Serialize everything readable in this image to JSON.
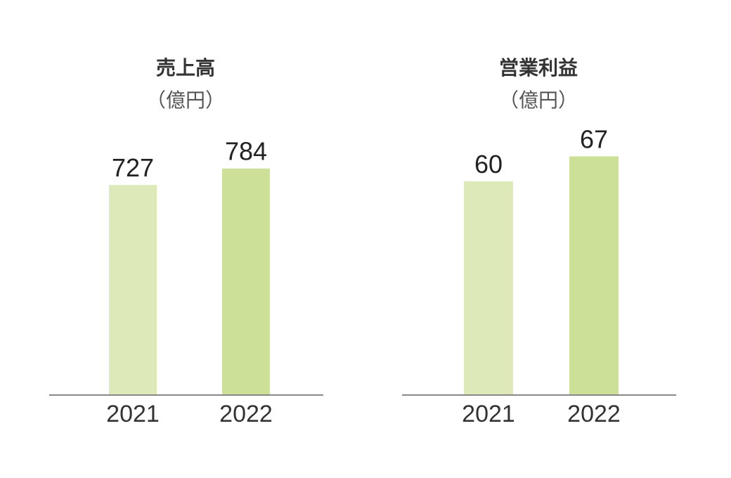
{
  "chart_data": [
    {
      "type": "bar",
      "title": "売上高",
      "unit": "（億円）",
      "categories": [
        "2021",
        "2022"
      ],
      "values": [
        727,
        784
      ],
      "value_labels": [
        "727",
        "784"
      ],
      "ylim": [
        0,
        900
      ],
      "grid": false,
      "legend": "none",
      "colors": [
        "#dde9b8",
        "#cce098"
      ]
    },
    {
      "type": "bar",
      "title": "営業利益",
      "unit": "（億円）",
      "categories": [
        "2021",
        "2022"
      ],
      "values": [
        60,
        67
      ],
      "value_labels": [
        "60",
        "67"
      ],
      "ylim": [
        0,
        73
      ],
      "grid": false,
      "legend": "none",
      "colors": [
        "#dde9b8",
        "#cce098"
      ]
    }
  ],
  "colors": {
    "axis": "#888888"
  }
}
